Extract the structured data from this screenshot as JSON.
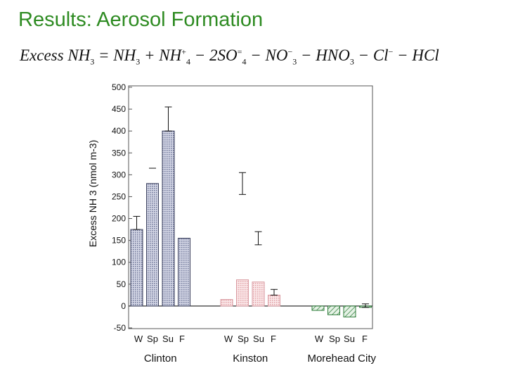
{
  "slide": {
    "title": "Results: Aerosol Formation",
    "equation": {
      "lhs": "Excess NH",
      "lhs_sub": "3",
      "eq": " = NH",
      "t1_sub": "3",
      "t2": " + NH",
      "t2_sup": "+",
      "t2_sub": "4",
      "t3": " − 2SO",
      "t3_sup": "=",
      "t3_sub": "4",
      "t4": " − NO",
      "t4_sup": "−",
      "t4_sub": "3",
      "t5": " − HNO",
      "t5_sub": "3",
      "t6": " − Cl",
      "t6_sup": "−",
      "t7": " − HCl"
    }
  },
  "chart_data": {
    "type": "bar",
    "ylabel": "Excess NH 3 (nmol m-3)",
    "ylim": [
      -50,
      500
    ],
    "yticks": [
      -50,
      0,
      50,
      100,
      150,
      200,
      250,
      300,
      350,
      400,
      450,
      500
    ],
    "categories": [
      "W",
      "Sp",
      "Su",
      "F"
    ],
    "groups": [
      {
        "name": "Clinton",
        "values": [
          175,
          280,
          400,
          155
        ],
        "errors": [
          [
            175,
            205
          ],
          [
            null,
            315
          ],
          [
            400,
            455
          ],
          null
        ]
      },
      {
        "name": "Kinston",
        "values": [
          15,
          60,
          55,
          25
        ],
        "errors": [
          null,
          [
            255,
            305
          ],
          [
            140,
            170
          ],
          [
            25,
            38
          ]
        ]
      },
      {
        "name": "Morehead City",
        "values": [
          -10,
          -20,
          -25,
          -3
        ],
        "errors": [
          null,
          null,
          null,
          [
            -3,
            5
          ]
        ]
      }
    ],
    "colors": {
      "Clinton": "#8c92b4",
      "Kinston": "#e0a0a6",
      "Morehead City": "#2e7d3a"
    }
  }
}
